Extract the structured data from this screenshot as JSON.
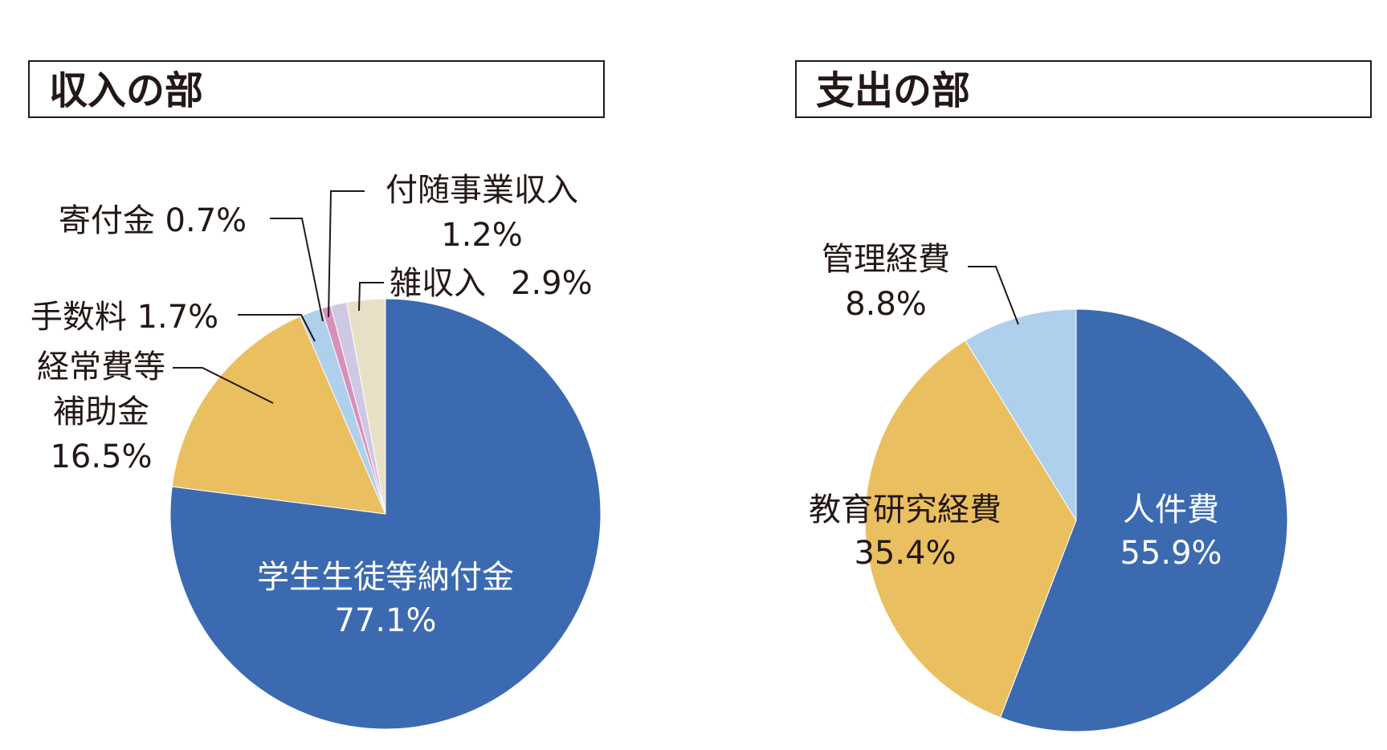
{
  "chart_data": [
    {
      "type": "pie",
      "title": "収入の部",
      "slices": [
        {
          "label": "学生生徒等納付金",
          "value": 77.1,
          "value_text": "77.1%",
          "color": "#3b6ab0"
        },
        {
          "label": "経常費等補助金",
          "value": 16.5,
          "value_text": "16.5%",
          "color": "#eabf60"
        },
        {
          "label": "手数料",
          "value": 1.7,
          "value_text": "1.7%",
          "color": "#aed0ec"
        },
        {
          "label": "寄付金",
          "value": 0.7,
          "value_text": "0.7%",
          "color": "#d98fbb"
        },
        {
          "label": "付随事業収入",
          "value": 1.2,
          "value_text": "1.2%",
          "color": "#cfc8e2"
        },
        {
          "label": "雑収入",
          "value": 2.9,
          "value_text": "2.9%",
          "color": "#e8e0c6"
        }
      ],
      "start_angle": "12 o'clock",
      "direction": "clockwise"
    },
    {
      "type": "pie",
      "title": "支出の部",
      "slices": [
        {
          "label": "人件費",
          "value": 55.9,
          "value_text": "55.9%",
          "color": "#3b6ab0"
        },
        {
          "label": "教育研究経費",
          "value": 35.4,
          "value_text": "35.4%",
          "color": "#eabf60"
        },
        {
          "label": "管理経費",
          "value": 8.8,
          "value_text": "8.8%",
          "color": "#aed0ec"
        }
      ],
      "start_angle": "12 o'clock",
      "direction": "clockwise"
    }
  ]
}
